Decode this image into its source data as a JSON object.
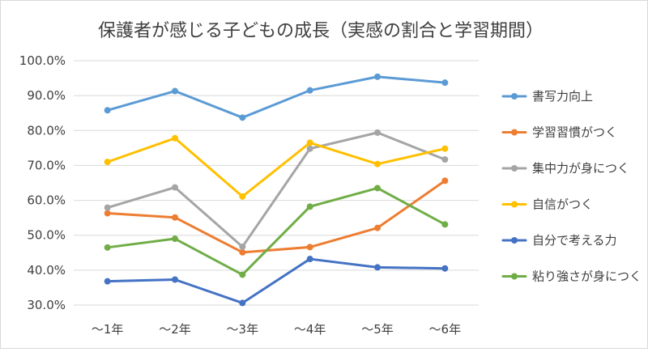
{
  "chart_data": {
    "type": "line",
    "title": "保護者が感じる子どもの成長（実感の割合と学習期間）",
    "xlabel": "",
    "ylabel": "",
    "categories": [
      "～1年",
      "～2年",
      "～3年",
      "～4年",
      "～5年",
      "～6年"
    ],
    "y_ticks": [
      "30.0%",
      "40.0%",
      "50.0%",
      "60.0%",
      "70.0%",
      "80.0%",
      "90.0%",
      "100.0%"
    ],
    "ylim": [
      30,
      100
    ],
    "grid": true,
    "legend_position": "right",
    "series": [
      {
        "name": "書写力向上",
        "color": "#5b9bd5",
        "values": [
          85.8,
          91.3,
          83.7,
          91.5,
          95.4,
          93.7
        ]
      },
      {
        "name": "学習習慣がつく",
        "color": "#ed7d31",
        "values": [
          56.3,
          55.1,
          45.1,
          46.6,
          52.1,
          65.6
        ]
      },
      {
        "name": "集中力が身につく",
        "color": "#a5a5a5",
        "values": [
          57.9,
          63.7,
          46.7,
          74.8,
          79.4,
          71.7
        ]
      },
      {
        "name": "自信がつく",
        "color": "#ffc000",
        "values": [
          71.0,
          77.8,
          61.1,
          76.5,
          70.4,
          74.8
        ]
      },
      {
        "name": "自分で考える力",
        "color": "#4472c4",
        "values": [
          36.8,
          37.3,
          30.6,
          43.2,
          40.8,
          40.5
        ]
      },
      {
        "name": "粘り強さが身につく",
        "color": "#70ad47",
        "values": [
          46.5,
          49.0,
          38.7,
          58.2,
          63.5,
          53.1
        ]
      }
    ]
  }
}
